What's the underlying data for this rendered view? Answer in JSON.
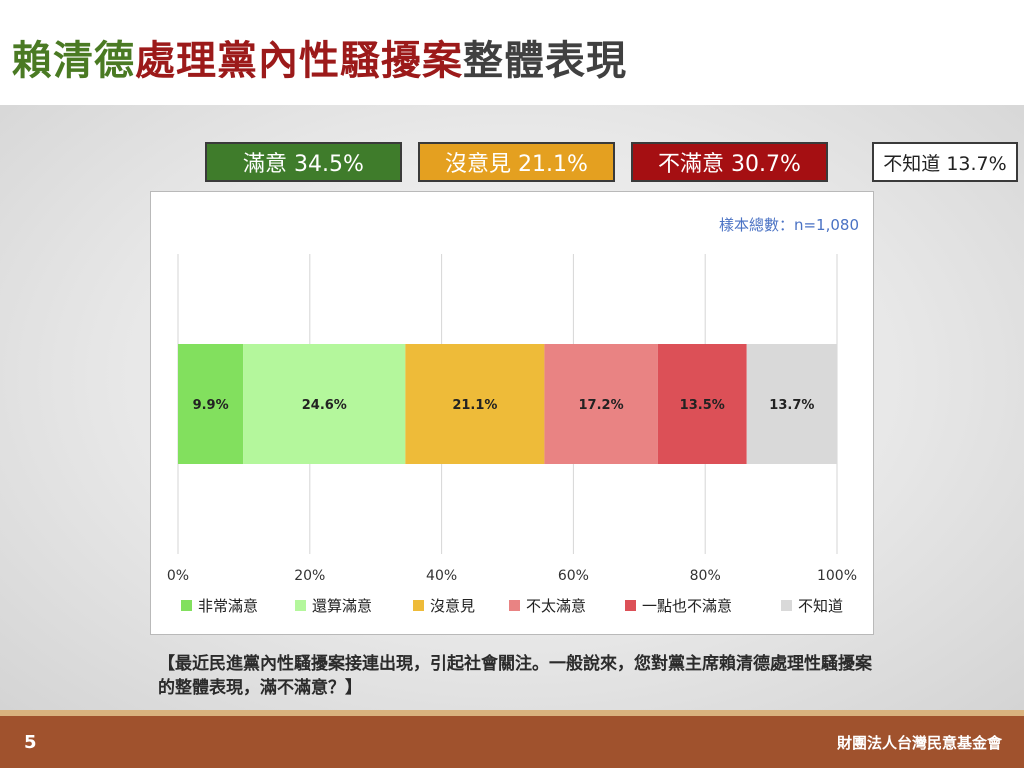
{
  "title": {
    "segments": [
      {
        "text": "賴清德",
        "color": "#4a7a23"
      },
      {
        "text": "處理黨內性騷擾案",
        "color": "#9c1a1a"
      },
      {
        "text": "整體表現",
        "color": "#404040"
      }
    ]
  },
  "summary": [
    {
      "text": "滿意 34.5%",
      "bg": "#3f7c2b",
      "color": "#ffffff"
    },
    {
      "text": "沒意見 21.1%",
      "bg": "#e4a020",
      "color": "#ffffff"
    },
    {
      "text": "不滿意 30.7%",
      "bg": "#a50f12",
      "color": "#ffffff"
    },
    {
      "text": "不知道 13.7%",
      "bg": "#ffffff",
      "color": "#222222"
    }
  ],
  "chart_data": {
    "type": "bar",
    "orientation": "horizontal-stacked",
    "sample_note": "樣本總數：n=1,080",
    "xlim": [
      0,
      100
    ],
    "x_ticks": [
      "0%",
      "20%",
      "40%",
      "60%",
      "80%",
      "100%"
    ],
    "grid": true,
    "legend_position": "bottom",
    "series": [
      {
        "name": "非常滿意",
        "values": [
          9.9
        ],
        "label": "9.9%",
        "color": "#82e05e"
      },
      {
        "name": "還算滿意",
        "values": [
          24.6
        ],
        "label": "24.6%",
        "color": "#b4f79c"
      },
      {
        "name": "沒意見",
        "values": [
          21.1
        ],
        "label": "21.1%",
        "color": "#eebb39"
      },
      {
        "name": "不太滿意",
        "values": [
          17.2
        ],
        "label": "17.2%",
        "color": "#e98383"
      },
      {
        "name": "一點也不滿意",
        "values": [
          13.5
        ],
        "label": "13.5%",
        "color": "#dc5057"
      },
      {
        "name": "不知道",
        "values": [
          13.7
        ],
        "label": "13.7%",
        "color": "#d9d9d9"
      }
    ]
  },
  "question": "【最近民進黨內性騷擾案接連出現，引起社會關注。一般說來，您對黨主席賴清德處理性騷擾案的整體表現，滿不滿意？】",
  "footer": {
    "page_number": "5",
    "organization": "財團法人台灣民意基金會",
    "bg": "#a0522d"
  }
}
